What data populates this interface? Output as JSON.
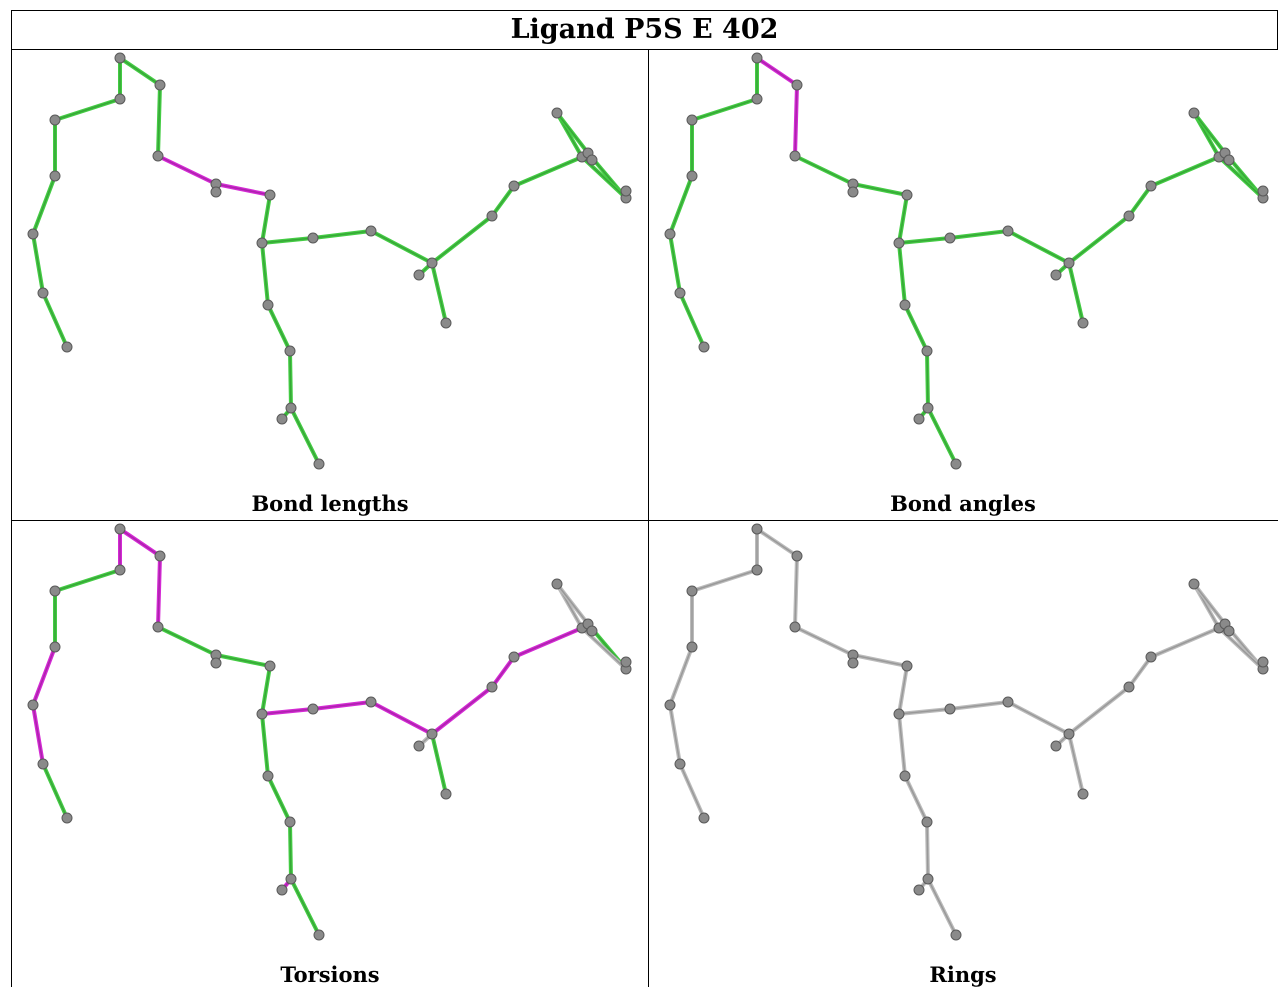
{
  "header": {
    "title": "Ligand P5S E 402"
  },
  "colors": {
    "good": "#44cc44",
    "outlier": "#d42ad4",
    "none": "#bbbbbb"
  },
  "panels": [
    {
      "caption": "Bond lengths",
      "outlier_bonds": [
        [
          8,
          9
        ],
        [
          9,
          10
        ],
        [
          20,
          21
        ]
      ],
      "good": true
    },
    {
      "caption": "Bond angles",
      "outlier_bonds": [
        [
          6,
          7
        ],
        [
          7,
          8
        ]
      ],
      "good": true
    },
    {
      "caption": "Torsions",
      "outlier_bonds": [
        [
          2,
          3
        ],
        [
          1,
          2
        ],
        [
          5,
          6
        ],
        [
          6,
          7
        ],
        [
          7,
          8
        ],
        [
          11,
          12
        ],
        [
          12,
          13
        ],
        [
          13,
          14
        ],
        [
          14,
          15
        ],
        [
          15,
          16
        ],
        [
          16,
          17
        ],
        [
          2,
          23
        ],
        [
          24,
          25
        ]
      ],
      "grey_bonds": [
        [
          14,
          27
        ],
        [
          14,
          28
        ],
        [
          21,
          22
        ],
        [
          22,
          29
        ],
        [
          22,
          30
        ],
        [
          17,
          18
        ],
        [
          17,
          19
        ],
        [
          18,
          19
        ],
        [
          17,
          20
        ],
        [
          25,
          26
        ]
      ],
      "good": true
    },
    {
      "caption": "Rings",
      "outlier_bonds": [],
      "good": false
    }
  ]
}
